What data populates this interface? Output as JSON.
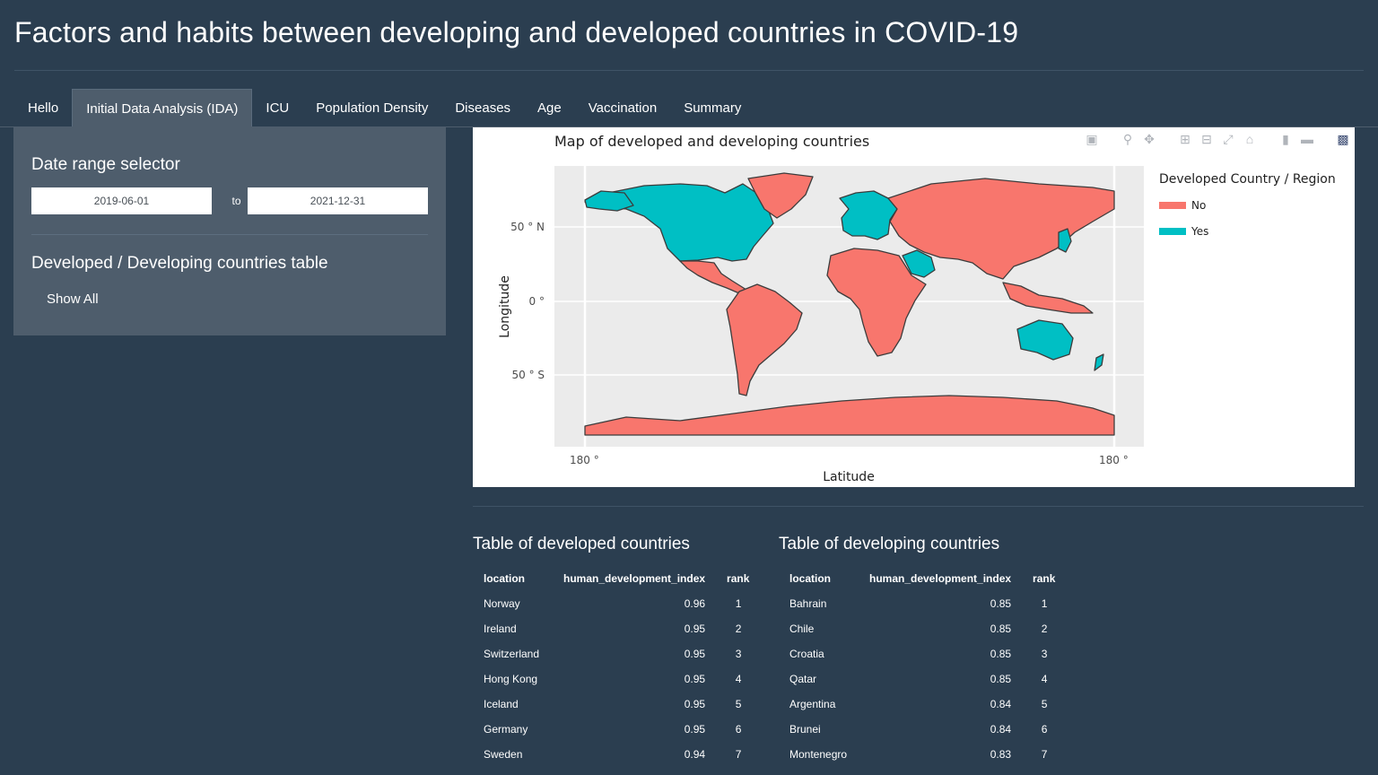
{
  "app": {
    "title": "Factors and habits between developing and developed countries in COVID-19"
  },
  "tabs": [
    {
      "label": "Hello"
    },
    {
      "label": "Initial Data Analysis (IDA)"
    },
    {
      "label": "ICU"
    },
    {
      "label": "Population Density"
    },
    {
      "label": "Diseases"
    },
    {
      "label": "Age"
    },
    {
      "label": "Vaccination"
    },
    {
      "label": "Summary"
    }
  ],
  "active_tab": "Initial Data Analysis (IDA)",
  "sidebar": {
    "date_label": "Date range selector",
    "start_date": "2019-06-01",
    "separator": "to",
    "end_date": "2021-12-31",
    "table_label": "Developed / Developing countries table",
    "show_all": "Show All"
  },
  "map": {
    "modebar_icons": [
      "camera-icon",
      "zoom-icon",
      "pan-icon",
      "zoom-in-icon",
      "zoom-out-icon",
      "autoscale-icon",
      "reset-axes-icon",
      "spike-lines-icon",
      "compare-hover-icon",
      "plotly-logo-icon"
    ]
  },
  "chart_data": {
    "type": "choropleth-map",
    "title": "Map of developed and developing countries",
    "xlabel": "Latitude",
    "ylabel": "Longitude",
    "x_ticks": [
      "180 °",
      "180 °"
    ],
    "y_ticks": [
      "50 ° N",
      "0 °",
      "50 ° S"
    ],
    "legend_title": "Developed Country / Region",
    "legend": [
      {
        "label": "No",
        "color": "#f8766d"
      },
      {
        "label": "Yes",
        "color": "#00bfc4"
      }
    ],
    "grid": true,
    "legend_position": "right"
  },
  "tables": {
    "developed": {
      "title": "Table of developed countries",
      "columns": [
        "location",
        "human_development_index",
        "rank"
      ],
      "rows": [
        [
          "Norway",
          "0.96",
          "1"
        ],
        [
          "Ireland",
          "0.95",
          "2"
        ],
        [
          "Switzerland",
          "0.95",
          "3"
        ],
        [
          "Hong Kong",
          "0.95",
          "4"
        ],
        [
          "Iceland",
          "0.95",
          "5"
        ],
        [
          "Germany",
          "0.95",
          "6"
        ],
        [
          "Sweden",
          "0.94",
          "7"
        ]
      ]
    },
    "developing": {
      "title": "Table of developing countries",
      "columns": [
        "location",
        "human_development_index",
        "rank"
      ],
      "rows": [
        [
          "Bahrain",
          "0.85",
          "1"
        ],
        [
          "Chile",
          "0.85",
          "2"
        ],
        [
          "Croatia",
          "0.85",
          "3"
        ],
        [
          "Qatar",
          "0.85",
          "4"
        ],
        [
          "Argentina",
          "0.84",
          "5"
        ],
        [
          "Brunei",
          "0.84",
          "6"
        ],
        [
          "Montenegro",
          "0.83",
          "7"
        ]
      ]
    }
  }
}
